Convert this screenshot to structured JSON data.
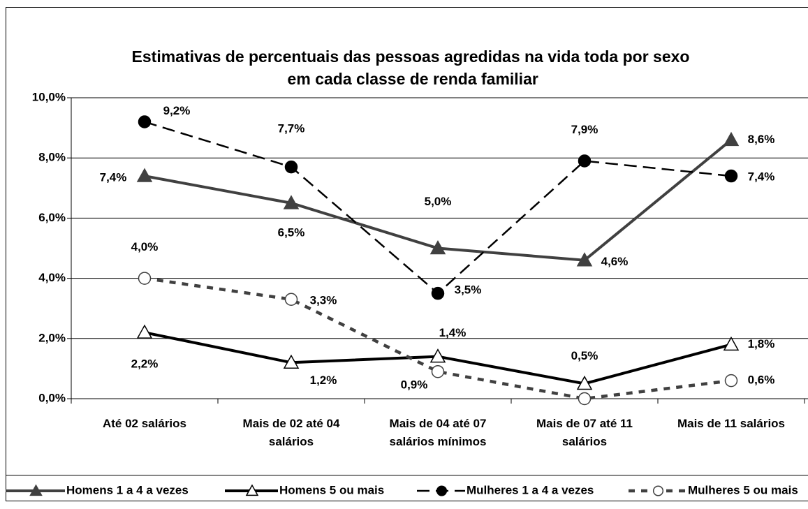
{
  "chart_data": {
    "type": "line",
    "title": "Estimativas de percentuais das pessoas agredidas na vida toda por sexo  em cada classe de renda familiar",
    "categories": [
      "Até 02 salários",
      "Mais de 02 até 04 salários",
      "Mais de 04 até 07 salários mínimos",
      "Mais de 07 até 11 salários",
      "Mais de 11 salários"
    ],
    "ylim": [
      0,
      10
    ],
    "yticks": [
      {
        "value": 0,
        "label": "0,0%"
      },
      {
        "value": 2,
        "label": "2,0%"
      },
      {
        "value": 4,
        "label": "4,0%"
      },
      {
        "value": 6,
        "label": "6,0%"
      },
      {
        "value": 8,
        "label": "8,0%"
      },
      {
        "value": 10,
        "label": "10,0%"
      }
    ],
    "grid": true,
    "legend": "bottom",
    "series": [
      {
        "name": "Homens 1 a 4 a vezes",
        "color": "#404040",
        "linestyle": "solid",
        "marker": "triangle",
        "marker_filled": true,
        "values": [
          7.4,
          6.5,
          5.0,
          4.6,
          8.6
        ],
        "value_labels": [
          "7,4%",
          "6,5%",
          "5,0%",
          "4,6%",
          "8,6%"
        ]
      },
      {
        "name": "Homens 5 ou mais",
        "color": "#000000",
        "linestyle": "solid",
        "marker": "triangle",
        "marker_filled": false,
        "values": [
          2.2,
          1.2,
          1.4,
          0.5,
          1.8
        ],
        "value_labels": [
          "2,2%",
          "1,2%",
          "1,4%",
          "0,5%",
          "1,8%"
        ]
      },
      {
        "name": "Mulheres 1 a 4 a vezes",
        "color": "#000000",
        "linestyle": "dashed",
        "marker": "circle",
        "marker_filled": true,
        "values": [
          9.2,
          7.7,
          3.5,
          7.9,
          7.4
        ],
        "value_labels": [
          "9,2%",
          "7,7%",
          "3,5%",
          "7,9%",
          "7,4%"
        ]
      },
      {
        "name": "Mulheres 5 ou mais",
        "color": "#404040",
        "linestyle": "dotted",
        "marker": "circle",
        "marker_filled": false,
        "values": [
          4.0,
          3.3,
          0.9,
          0.0,
          0.6
        ],
        "value_labels": [
          "4,0%",
          "3,3%",
          "0,9%",
          null,
          "0,6%"
        ]
      }
    ]
  }
}
